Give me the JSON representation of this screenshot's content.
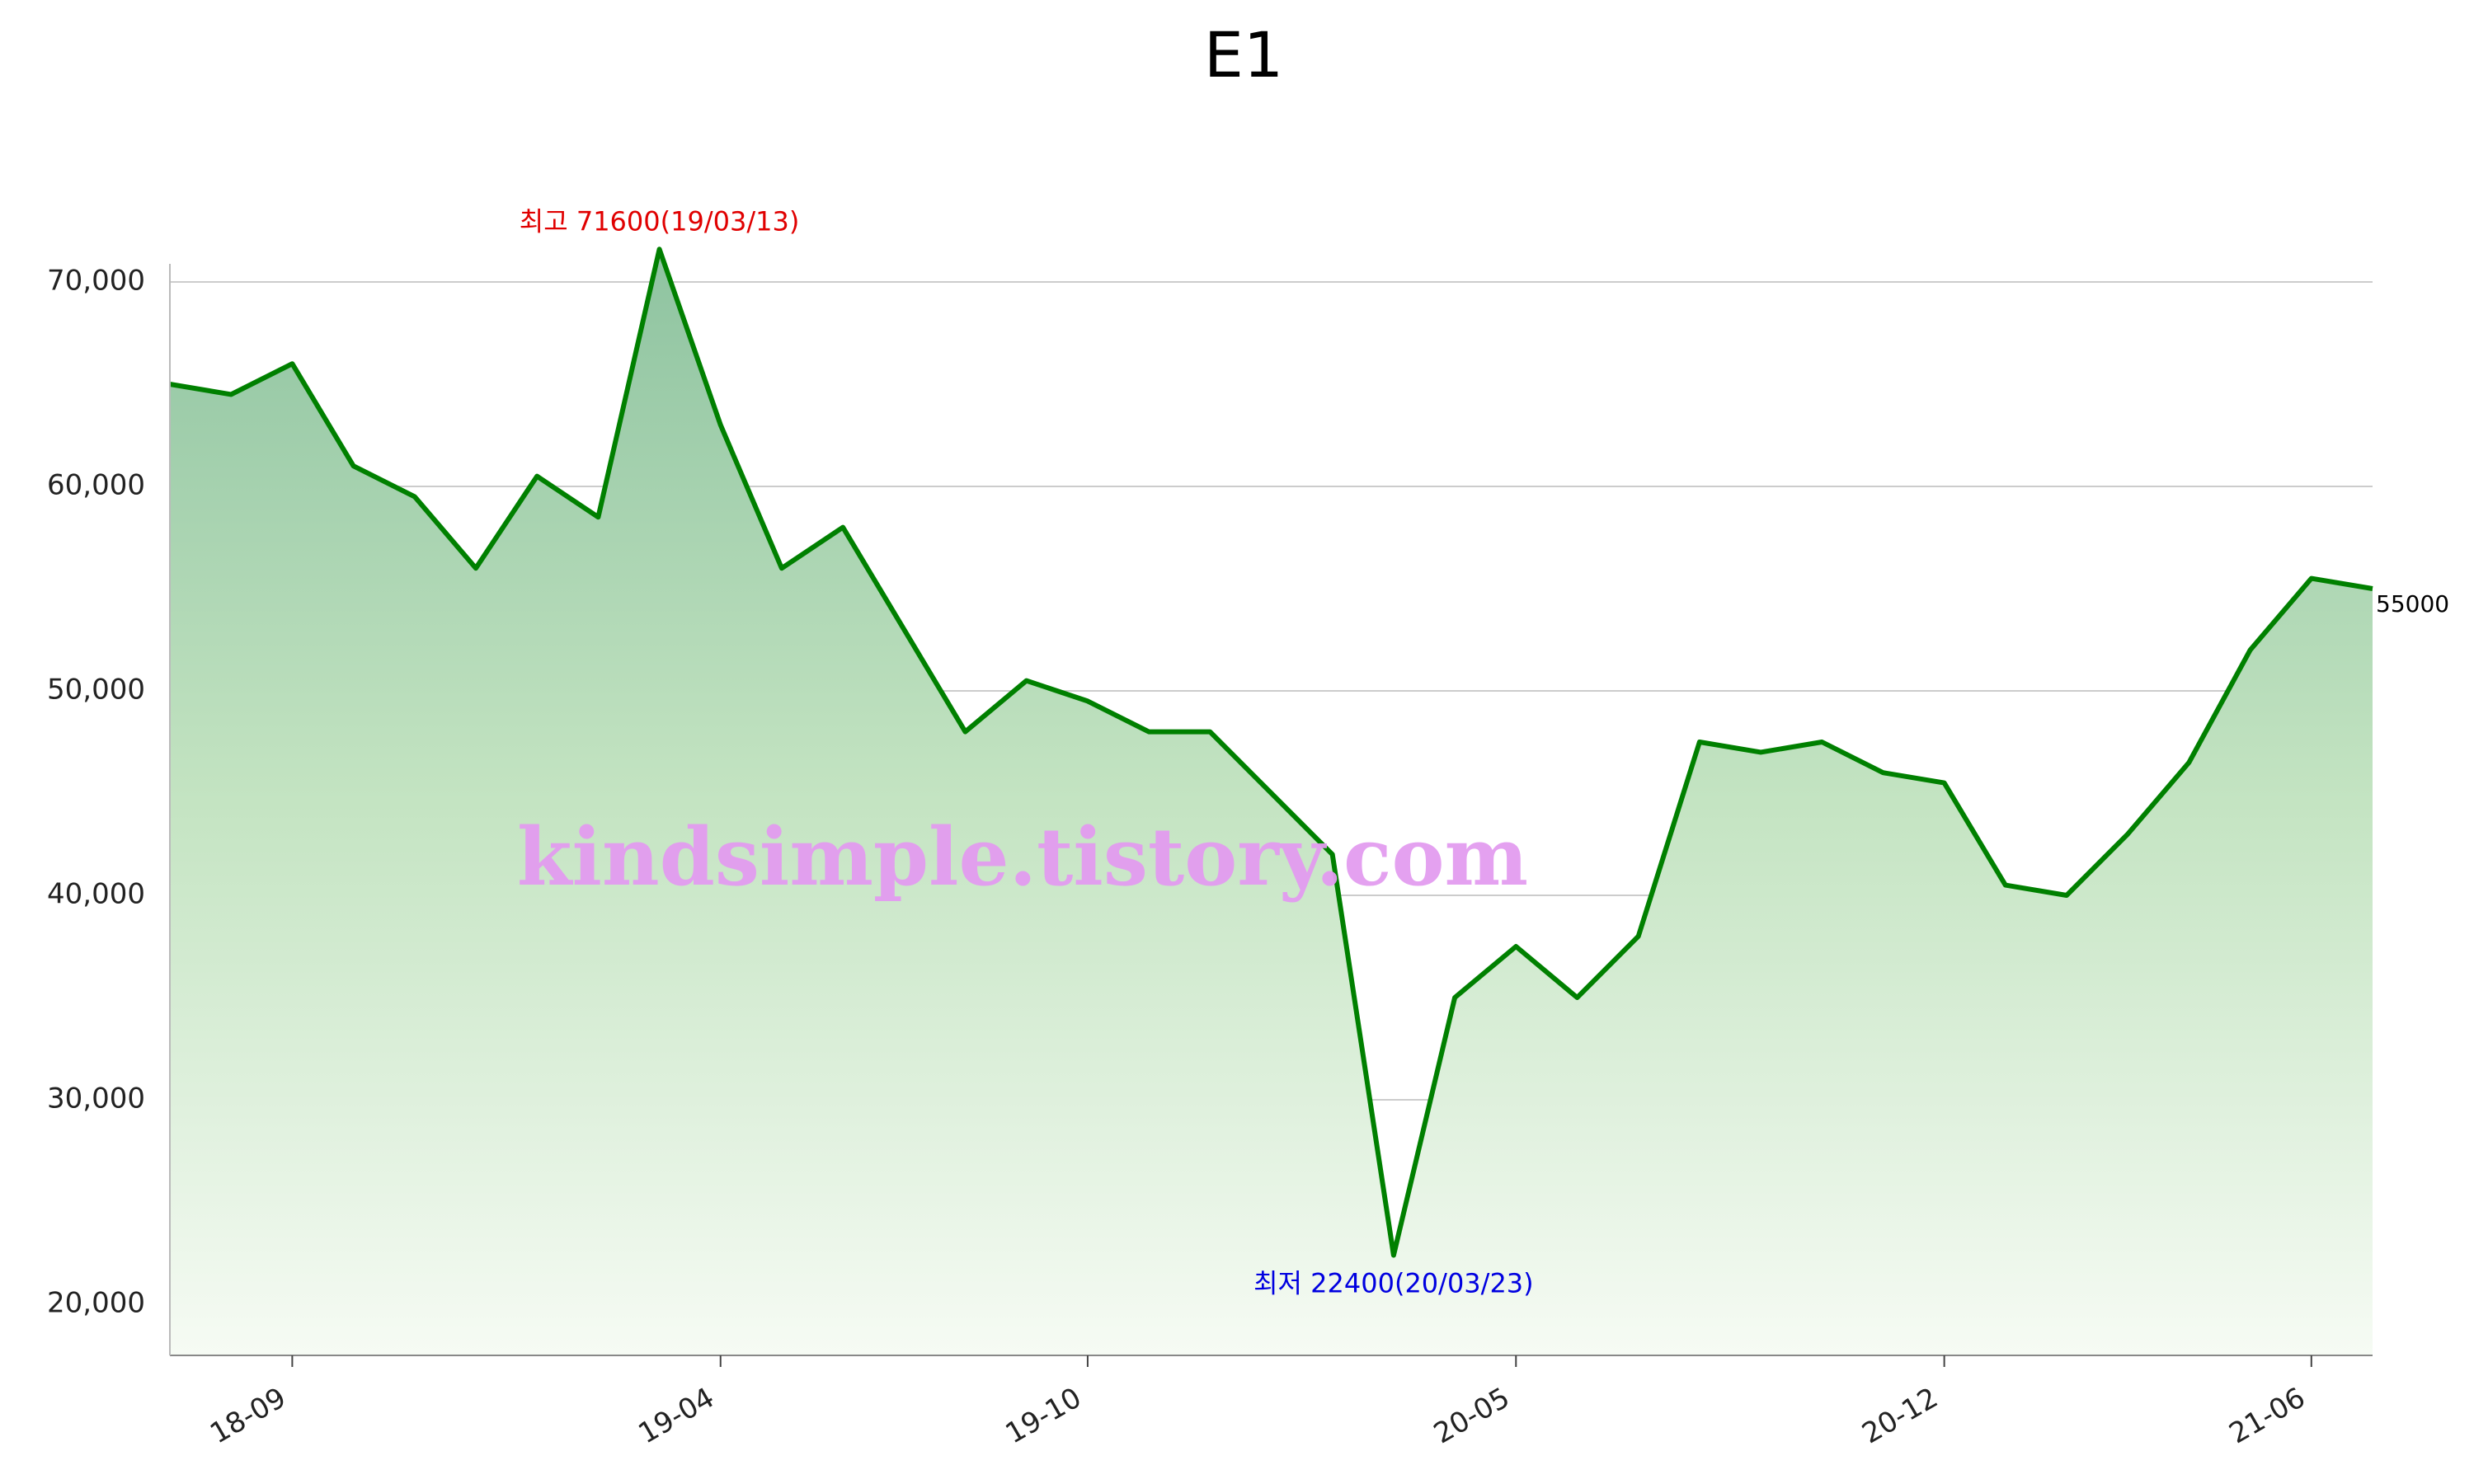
{
  "chart_data": {
    "type": "area",
    "title": "E1",
    "x": [
      "18-07",
      "18-08",
      "18-09",
      "18-10",
      "18-11",
      "18-12",
      "19-01",
      "19-02",
      "19-03",
      "19-04",
      "19-05",
      "19-06",
      "19-07",
      "19-08",
      "19-09",
      "19-10",
      "19-11",
      "19-12",
      "20-01",
      "20-02",
      "20-03",
      "20-04",
      "20-05",
      "20-06",
      "20-07",
      "20-08",
      "20-09",
      "20-10",
      "20-11",
      "20-12",
      "21-01",
      "21-02",
      "21-03",
      "21-04",
      "21-05",
      "21-06",
      "21-07"
    ],
    "series": [
      {
        "color": "#008000",
        "values": [
          65000,
          64500,
          66000,
          61000,
          59500,
          56000,
          60500,
          58500,
          71600,
          63000,
          56000,
          58000,
          53000,
          48000,
          50500,
          49500,
          48000,
          48000,
          45000,
          42000,
          22400,
          35000,
          37500,
          35000,
          38000,
          47500,
          47000,
          47500,
          46000,
          45500,
          40500,
          40000,
          43000,
          46500,
          52000,
          55500,
          55000
        ]
      }
    ],
    "ylim": [
      17500,
      72500
    ],
    "yticks": [
      {
        "value": 20000,
        "label": "20,000"
      },
      {
        "value": 30000,
        "label": "30,000"
      },
      {
        "value": 40000,
        "label": "40,000"
      },
      {
        "value": 50000,
        "label": "50,000"
      },
      {
        "value": 60000,
        "label": "60,000"
      },
      {
        "value": 70000,
        "label": "70,000"
      }
    ],
    "xticks": [
      "18-09",
      "19-04",
      "19-10",
      "20-05",
      "20-12",
      "21-06"
    ],
    "grid": true,
    "annotations": [
      {
        "text": "최고 71600(19/03/13)",
        "x": "19-03",
        "color": "#e00000",
        "position": "above"
      },
      {
        "text": "최저 22400(20/03/23)",
        "x": "20-03",
        "color": "#0000e0",
        "position": "below"
      }
    ],
    "watermark": "kindsimple.tistory.com"
  }
}
